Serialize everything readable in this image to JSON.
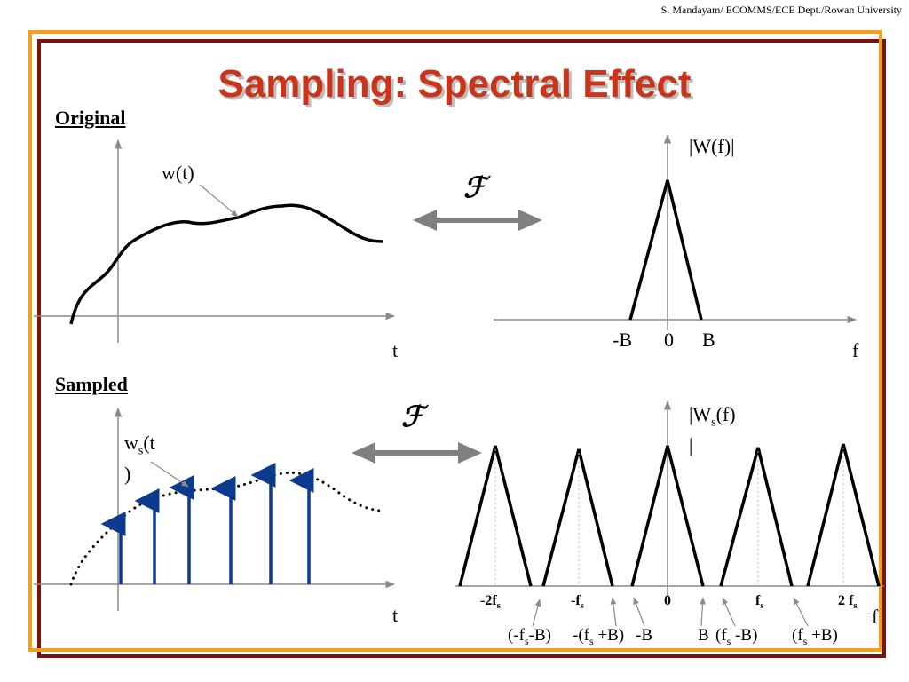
{
  "slide": {
    "credit": "S. Mandayam/ ECOMMS/ECE Dept./Rowan University",
    "title": "Sampling: Spectral Effect"
  },
  "original": {
    "heading": "Original",
    "signal_label": "w(t)",
    "time_axis": "t",
    "transform_symbol": "ℱ",
    "spectrum_label": "|W(f)|",
    "freq_ticks": [
      "-B",
      "0",
      "B"
    ],
    "freq_axis": "f"
  },
  "sampled": {
    "heading": "Sampled",
    "signal_label": {
      "base": "w",
      "sub": "s",
      "rest": "(t",
      "line2": ")"
    },
    "time_axis": "t",
    "transform_symbol": "ℱ",
    "spectrum_label": {
      "base": "|W",
      "sub": "s",
      "rest": "(f)",
      "line2": "|"
    },
    "freq_axis": "f",
    "tick_labels": [
      {
        "pre": "-2f",
        "sub": "s",
        "post": ""
      },
      {
        "pre": "-f",
        "sub": "s",
        "post": ""
      },
      {
        "pre": "0",
        "sub": "",
        "post": ""
      },
      {
        "pre": "f",
        "sub": "s",
        "post": ""
      },
      {
        "pre": "2 f",
        "sub": "s",
        "post": ""
      }
    ],
    "band_labels": [
      {
        "pre": "(-f",
        "sub": "s",
        "post": "-B)"
      },
      {
        "pre": "-(f",
        "sub": "s",
        "post": " +B)"
      },
      {
        "pre": "-B",
        "sub": "",
        "post": ""
      },
      {
        "pre": "B",
        "sub": "",
        "post": ""
      },
      {
        "pre": "(f",
        "sub": "s",
        "post": " -B)"
      },
      {
        "pre": "(f",
        "sub": "s",
        "post": " +B)"
      }
    ]
  },
  "colors": {
    "title": "#c8351a",
    "frame_outer": "#7a1212",
    "frame_inner": "#f0a020",
    "sample_arrows": "#0b3a8f",
    "double_arrow": "#808080",
    "axes": "#8a8a8a"
  }
}
